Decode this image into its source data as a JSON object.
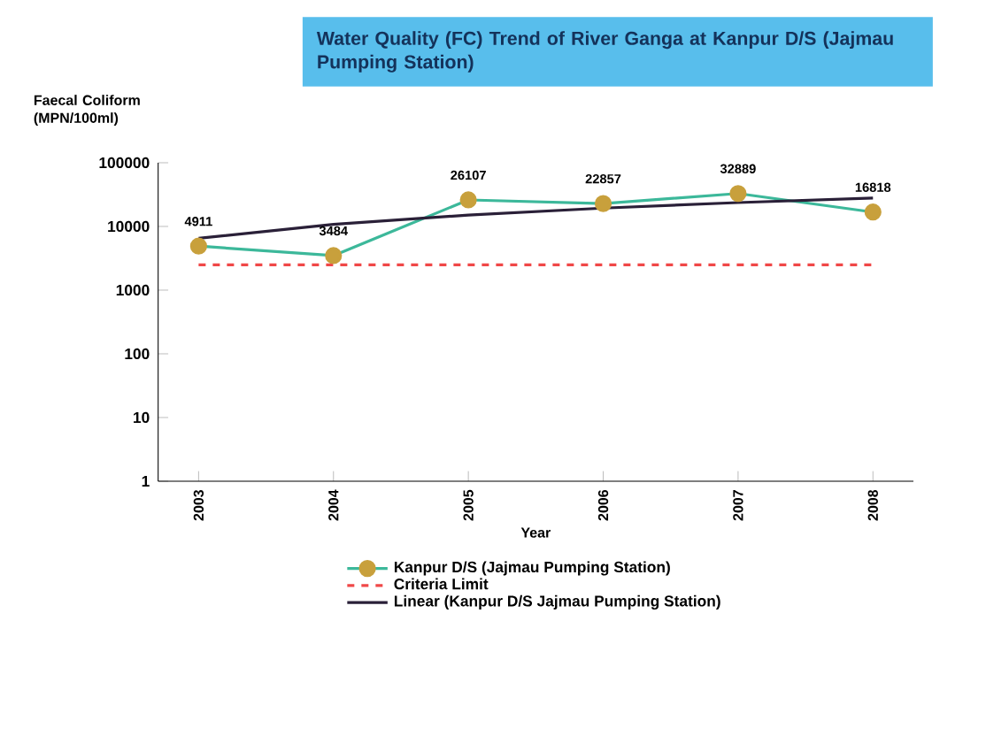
{
  "chart_data": {
    "type": "line",
    "title": "Water Quality (FC) Trend of River Ganga at Kanpur D/S (Jajmau Pumping Station)",
    "ylabel": "Faecal Coliform (MPN/100ml)",
    "xlabel": "Year",
    "categories": [
      "2003",
      "2004",
      "2005",
      "2006",
      "2007",
      "2008"
    ],
    "series": [
      {
        "name": "Kanpur D/S (Jajmau Pumping Station)",
        "color": "#3cb89a",
        "values": [
          4911,
          3484,
          26107,
          22857,
          32889,
          16818
        ],
        "marker": "circle",
        "line_style": "solid",
        "value_labels": [
          "4911",
          "3484",
          "26107",
          "22857",
          "32889",
          "16818"
        ]
      },
      {
        "name": "Criteria Limit",
        "color": "#f04848",
        "values": [
          2500,
          2500,
          2500,
          2500,
          2500,
          2500
        ],
        "marker": "none",
        "line_style": "dashed"
      },
      {
        "name": "Linear (Kanpur D/S Jajmau Pumping Station)",
        "color": "#2a2038",
        "values": [
          6500,
          10800,
          15100,
          19400,
          23700,
          28000
        ],
        "marker": "none",
        "line_style": "solid"
      }
    ],
    "log": "y",
    "ylim": [
      1,
      100000
    ],
    "yticks": [
      1,
      10,
      100,
      1000,
      10000,
      100000
    ],
    "grid": false,
    "legend": "bottom"
  }
}
